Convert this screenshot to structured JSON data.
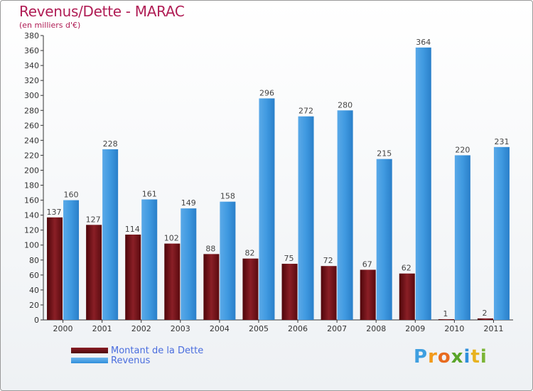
{
  "header": {
    "title": "Revenus/Dette - MARAC",
    "subtitle": "(en milliers d'€)"
  },
  "colors": {
    "debt": "#6b0a0f",
    "debt_light": "#a0353b",
    "revenue": "#2f8fdb",
    "revenue_light": "#6fb6ee",
    "accent": "#b01d55"
  },
  "chart_data": {
    "type": "bar",
    "title": "Revenus/Dette - MARAC",
    "ylabel": "(en milliers d'€)",
    "xlabel": "",
    "categories": [
      "2000",
      "2001",
      "2002",
      "2003",
      "2004",
      "2005",
      "2006",
      "2007",
      "2008",
      "2009",
      "2010",
      "2011"
    ],
    "series": [
      {
        "name": "Montant de la Dette",
        "values": [
          137,
          127,
          114,
          102,
          88,
          82,
          75,
          72,
          67,
          62,
          1,
          2
        ]
      },
      {
        "name": "Revenus",
        "values": [
          160,
          228,
          161,
          149,
          158,
          296,
          272,
          280,
          215,
          364,
          220,
          231
        ]
      }
    ],
    "ylim": [
      0,
      380
    ],
    "ytick_step": 20,
    "grid": false,
    "legend_position": "bottom-left"
  },
  "legend": {
    "items": [
      {
        "label": "Montant de la Dette"
      },
      {
        "label": "Revenus"
      }
    ]
  },
  "logo": {
    "letters": [
      "P",
      "r",
      "o",
      "x",
      "i",
      "t",
      "i"
    ],
    "colors": [
      "#3f9fe0",
      "#f29a1b",
      "#e86b1f",
      "#5aa52a",
      "#2f8fdb",
      "#e8b21f",
      "#7bb536"
    ]
  }
}
